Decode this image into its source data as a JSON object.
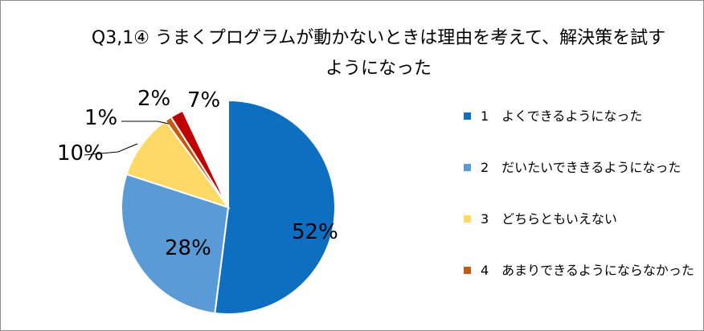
{
  "chart_data": {
    "type": "pie",
    "title_lines": [
      "Q3,1④ うまくプログラムが動かないときは理由を考えて、解決策を試す",
      "ようになった"
    ],
    "slices": [
      {
        "label": "52%",
        "value": 52,
        "color": "#0E6FC0"
      },
      {
        "label": "28%",
        "value": 28,
        "color": "#5B9BD5"
      },
      {
        "label": "10%",
        "value": 10,
        "color": "#FFD966"
      },
      {
        "label": "1%",
        "value": 1,
        "color": "#C55A11"
      },
      {
        "label": "2%",
        "value": 2,
        "color": "#C00000"
      },
      {
        "label": "7%",
        "value": 7,
        "color": "#FFFFFF"
      }
    ],
    "legend": [
      {
        "label": "1　よくできるようになった",
        "color": "#0E6FC0"
      },
      {
        "label": "2　だいたいでききるようになった",
        "color": "#5B9BD5"
      },
      {
        "label": "3　どちらともいえない",
        "color": "#FFD966"
      },
      {
        "label": "4　あまりできるようにならなかった",
        "color": "#C55A11"
      }
    ]
  }
}
